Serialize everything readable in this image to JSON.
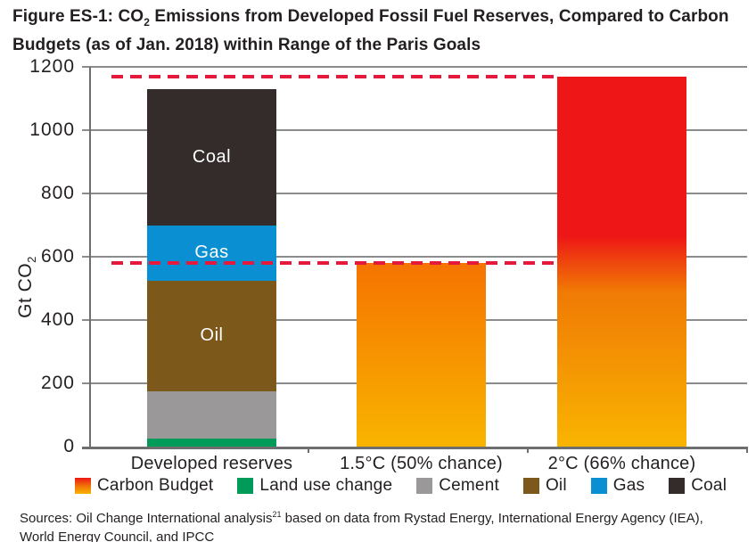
{
  "header": {
    "prefix": "Figure ES-1: CO",
    "sub": "2",
    "line1_rest": " Emissions from Developed Fossil Fuel Reserves, Compared to Carbon",
    "line2": "Budgets (as of Jan. 2018) within Range of the Paris Goals"
  },
  "axes": {
    "ylabel_prefix": "Gt CO",
    "ylabel_sub": "2"
  },
  "chart_data": {
    "type": "bar",
    "stacked": true,
    "title": "Figure ES-1: CO2 Emissions from Developed Fossil Fuel Reserves, Compared to Carbon Budgets (as of Jan. 2018) within Range of the Paris Goals",
    "ylabel": "Gt CO2",
    "ylim": [
      0,
      1200
    ],
    "yticks": [
      0,
      200,
      400,
      600,
      800,
      1000,
      1200
    ],
    "grid": true,
    "gridline_color": "#8a8c8e",
    "axis_color": "#6d6e70",
    "categories": [
      "Developed reserves",
      "1.5°C (50% chance)",
      "2°C (66% chance)"
    ],
    "bars": [
      {
        "category": "Developed reserves",
        "total": 1130,
        "segments": [
          {
            "name": "Land use change",
            "value": 25,
            "color": "#009b59"
          },
          {
            "name": "Cement",
            "value": 150,
            "color": "#9a9898"
          },
          {
            "name": "Oil",
            "value": 350,
            "color": "#7c591b",
            "label": "Oil"
          },
          {
            "name": "Gas",
            "value": 175,
            "color": "#0a8fd2",
            "label": "Gas"
          },
          {
            "name": "Coal",
            "value": 430,
            "color": "#332c2b",
            "label": "Coal"
          }
        ]
      },
      {
        "category": "1.5°C (50% chance)",
        "total": 580,
        "segments": [
          {
            "name": "Carbon Budget",
            "value": 580,
            "gradient": [
              [
                "#f57300",
                0
              ],
              [
                "#f9b400",
                100
              ]
            ]
          }
        ]
      },
      {
        "category": "2°C (66% chance)",
        "total": 1170,
        "segments": [
          {
            "name": "Carbon Budget",
            "value": 1170,
            "gradient": [
              [
                "#ee1616",
                0
              ],
              [
                "#ee1616",
                43
              ],
              [
                "#f07a05",
                58
              ],
              [
                "#f9b401",
                100
              ]
            ]
          }
        ]
      }
    ],
    "budget_lines": [
      {
        "name": "1.5°C (50% chance) budget",
        "value": 580
      },
      {
        "name": "2°C (66% chance) budget",
        "value": 1170
      }
    ],
    "budget_line_color": "#e5193c",
    "legend_position": "bottom"
  },
  "legend": {
    "items": [
      {
        "label": "Carbon Budget",
        "gradient": [
          [
            "#ee1616",
            0
          ],
          [
            "#f07a05",
            55
          ],
          [
            "#f9b401",
            100
          ]
        ]
      },
      {
        "label": "Land use change",
        "color": "#009b59"
      },
      {
        "label": "Cement",
        "color": "#9a9898"
      },
      {
        "label": "Oil",
        "color": "#7c591b"
      },
      {
        "label": "Gas",
        "color": "#0a8fd2"
      },
      {
        "label": "Coal",
        "color": "#332c2b"
      }
    ]
  },
  "sources": {
    "prefix": "Sources: Oil Change International analysis",
    "sup": "21",
    "rest": " based on data from Rystad Energy, International Energy Agency (IEA),",
    "line2": "World Energy Council, and IPCC"
  }
}
